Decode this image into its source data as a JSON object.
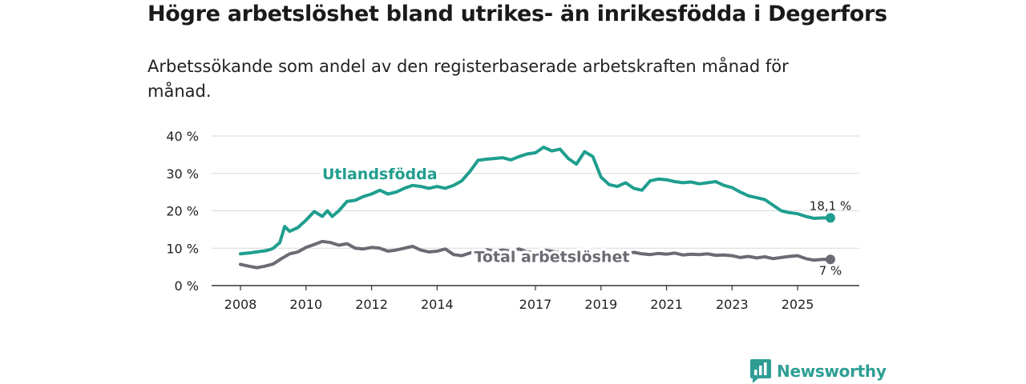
{
  "header": {
    "title": "Högre arbetslöshet bland utrikes- än inrikesfödda i Degerfors",
    "subtitle": "Arbetssökande som andel av den registerbaserade arbetskraften månad för månad."
  },
  "brand": {
    "name": "Newsworthy",
    "icon": "bar-chart-speech-bubble-icon",
    "color": "#2e9e94"
  },
  "chart_data": {
    "type": "line",
    "title": "Högre arbetslöshet bland utrikes- än inrikesfödda i Degerfors",
    "subtitle": "Arbetssökande som andel av den registerbaserade arbetskraften månad för månad.",
    "xlabel": "",
    "ylabel": "",
    "xlim": [
      2008.0,
      2026.2
    ],
    "ylim": [
      0,
      40
    ],
    "x_ticks": [
      {
        "value": 2008,
        "label": "2008"
      },
      {
        "value": 2010,
        "label": "2010"
      },
      {
        "value": 2012,
        "label": "2012"
      },
      {
        "value": 2014,
        "label": "2014"
      },
      {
        "value": 2017,
        "label": "2017"
      },
      {
        "value": 2019,
        "label": "2019"
      },
      {
        "value": 2021,
        "label": "2021"
      },
      {
        "value": 2023,
        "label": "2023"
      },
      {
        "value": 2025,
        "label": "2025"
      }
    ],
    "y_ticks": [
      {
        "value": 0,
        "label": "0 %"
      },
      {
        "value": 10,
        "label": "10 %"
      },
      {
        "value": 20,
        "label": "20 %"
      },
      {
        "value": 30,
        "label": "30 %"
      },
      {
        "value": 40,
        "label": "40 %"
      }
    ],
    "grid": true,
    "series": [
      {
        "name": "Utlandsfödda",
        "color": "#1f9e8e",
        "label_at": [
          2012.25,
          28.5
        ],
        "end_label": "18,1 %",
        "points": [
          [
            2008.0,
            8.5
          ],
          [
            2008.25,
            8.7
          ],
          [
            2008.5,
            9.0
          ],
          [
            2008.75,
            9.3
          ],
          [
            2008.9,
            9.6
          ],
          [
            2009.0,
            10.0
          ],
          [
            2009.2,
            11.5
          ],
          [
            2009.35,
            15.8
          ],
          [
            2009.5,
            14.5
          ],
          [
            2009.75,
            15.5
          ],
          [
            2010.0,
            17.5
          ],
          [
            2010.25,
            19.8
          ],
          [
            2010.5,
            18.5
          ],
          [
            2010.65,
            20.0
          ],
          [
            2010.8,
            18.5
          ],
          [
            2011.0,
            20.0
          ],
          [
            2011.25,
            22.5
          ],
          [
            2011.5,
            22.8
          ],
          [
            2011.75,
            23.8
          ],
          [
            2012.0,
            24.5
          ],
          [
            2012.25,
            25.5
          ],
          [
            2012.5,
            24.5
          ],
          [
            2012.75,
            25.0
          ],
          [
            2013.0,
            26.0
          ],
          [
            2013.25,
            26.8
          ],
          [
            2013.5,
            26.5
          ],
          [
            2013.75,
            26.0
          ],
          [
            2014.0,
            26.5
          ],
          [
            2014.25,
            26.0
          ],
          [
            2014.5,
            26.8
          ],
          [
            2014.75,
            28.0
          ],
          [
            2015.0,
            30.5
          ],
          [
            2015.25,
            33.5
          ],
          [
            2015.5,
            33.8
          ],
          [
            2015.75,
            34.0
          ],
          [
            2016.0,
            34.2
          ],
          [
            2016.25,
            33.6
          ],
          [
            2016.5,
            34.5
          ],
          [
            2016.75,
            35.2
          ],
          [
            2017.0,
            35.5
          ],
          [
            2017.25,
            37.0
          ],
          [
            2017.5,
            36.0
          ],
          [
            2017.75,
            36.5
          ],
          [
            2018.0,
            34.0
          ],
          [
            2018.25,
            32.5
          ],
          [
            2018.5,
            35.8
          ],
          [
            2018.75,
            34.5
          ],
          [
            2019.0,
            29.0
          ],
          [
            2019.25,
            27.0
          ],
          [
            2019.5,
            26.5
          ],
          [
            2019.75,
            27.5
          ],
          [
            2020.0,
            26.0
          ],
          [
            2020.25,
            25.5
          ],
          [
            2020.5,
            28.0
          ],
          [
            2020.75,
            28.5
          ],
          [
            2021.0,
            28.3
          ],
          [
            2021.25,
            27.8
          ],
          [
            2021.5,
            27.5
          ],
          [
            2021.75,
            27.7
          ],
          [
            2022.0,
            27.2
          ],
          [
            2022.25,
            27.5
          ],
          [
            2022.5,
            27.8
          ],
          [
            2022.75,
            26.8
          ],
          [
            2023.0,
            26.2
          ],
          [
            2023.25,
            25.0
          ],
          [
            2023.5,
            24.0
          ],
          [
            2023.75,
            23.5
          ],
          [
            2024.0,
            23.0
          ],
          [
            2024.25,
            21.5
          ],
          [
            2024.5,
            20.0
          ],
          [
            2024.75,
            19.5
          ],
          [
            2025.0,
            19.2
          ],
          [
            2025.25,
            18.5
          ],
          [
            2025.5,
            18.0
          ],
          [
            2025.75,
            18.1
          ],
          [
            2026.0,
            18.1
          ]
        ]
      },
      {
        "name": "Total arbetslöshet",
        "color": "#6b6b73",
        "label_at": [
          2017.5,
          6.3
        ],
        "end_label": "7 %",
        "points": [
          [
            2008.0,
            5.7
          ],
          [
            2008.25,
            5.2
          ],
          [
            2008.5,
            4.8
          ],
          [
            2008.75,
            5.2
          ],
          [
            2009.0,
            5.8
          ],
          [
            2009.25,
            7.2
          ],
          [
            2009.5,
            8.5
          ],
          [
            2009.75,
            9.0
          ],
          [
            2010.0,
            10.2
          ],
          [
            2010.25,
            11.0
          ],
          [
            2010.5,
            11.8
          ],
          [
            2010.75,
            11.5
          ],
          [
            2011.0,
            10.8
          ],
          [
            2011.25,
            11.2
          ],
          [
            2011.5,
            10.0
          ],
          [
            2011.75,
            9.8
          ],
          [
            2012.0,
            10.2
          ],
          [
            2012.25,
            10.0
          ],
          [
            2012.5,
            9.2
          ],
          [
            2012.75,
            9.5
          ],
          [
            2013.0,
            10.0
          ],
          [
            2013.25,
            10.5
          ],
          [
            2013.5,
            9.5
          ],
          [
            2013.75,
            9.0
          ],
          [
            2014.0,
            9.2
          ],
          [
            2014.25,
            9.8
          ],
          [
            2014.5,
            8.3
          ],
          [
            2014.75,
            8.0
          ],
          [
            2015.0,
            8.7
          ],
          [
            2015.25,
            9.3
          ],
          [
            2015.5,
            9.6
          ],
          [
            2015.75,
            9.2
          ],
          [
            2016.0,
            9.5
          ],
          [
            2016.25,
            9.2
          ],
          [
            2016.5,
            9.8
          ],
          [
            2016.75,
            9.0
          ],
          [
            2017.0,
            8.8
          ],
          [
            2017.25,
            9.5
          ],
          [
            2017.5,
            9.2
          ],
          [
            2017.75,
            8.8
          ],
          [
            2018.0,
            8.5
          ],
          [
            2018.25,
            8.3
          ],
          [
            2018.5,
            8.6
          ],
          [
            2018.75,
            8.4
          ],
          [
            2019.0,
            8.5
          ],
          [
            2019.25,
            8.2
          ],
          [
            2019.5,
            8.6
          ],
          [
            2019.75,
            8.4
          ],
          [
            2020.0,
            8.9
          ],
          [
            2020.25,
            8.5
          ],
          [
            2020.5,
            8.3
          ],
          [
            2020.75,
            8.6
          ],
          [
            2021.0,
            8.4
          ],
          [
            2021.25,
            8.7
          ],
          [
            2021.5,
            8.2
          ],
          [
            2021.75,
            8.4
          ],
          [
            2022.0,
            8.3
          ],
          [
            2022.25,
            8.5
          ],
          [
            2022.5,
            8.1
          ],
          [
            2022.75,
            8.2
          ],
          [
            2023.0,
            8.0
          ],
          [
            2023.25,
            7.5
          ],
          [
            2023.5,
            7.8
          ],
          [
            2023.75,
            7.4
          ],
          [
            2024.0,
            7.7
          ],
          [
            2024.25,
            7.2
          ],
          [
            2024.5,
            7.5
          ],
          [
            2024.75,
            7.8
          ],
          [
            2025.0,
            8.0
          ],
          [
            2025.25,
            7.2
          ],
          [
            2025.5,
            6.8
          ],
          [
            2025.75,
            7.0
          ],
          [
            2026.0,
            7.0
          ]
        ]
      }
    ]
  }
}
